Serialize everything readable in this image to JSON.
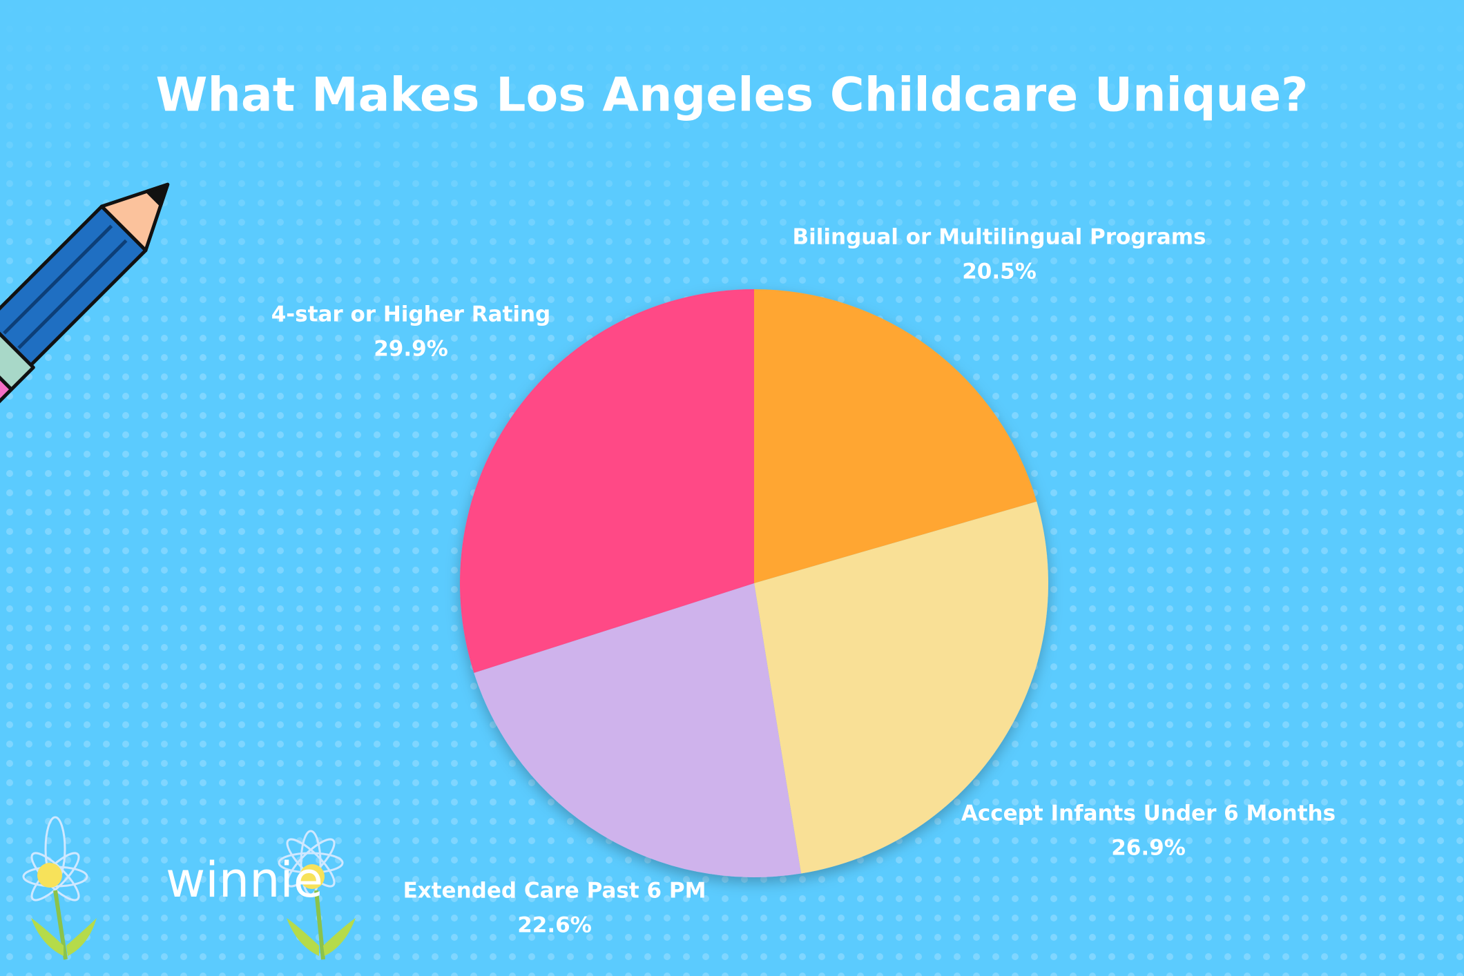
{
  "chart_data": {
    "type": "pie",
    "title": "What Makes Los Angeles Childcare Unique?",
    "categories": [
      "Bilingual or Multilingual Programs",
      "Accept Infants Under 6 Months",
      "Extended Care Past 6 PM",
      "4-star or Higher Rating"
    ],
    "values": [
      20.5,
      26.9,
      22.6,
      29.9
    ],
    "value_labels": [
      "20.5%",
      "26.9%",
      "22.6%",
      "29.9%"
    ],
    "colors": [
      "#FFA630",
      "#F9E096",
      "#CFB3EC",
      "#FF4A86"
    ]
  },
  "brand": "winnie"
}
